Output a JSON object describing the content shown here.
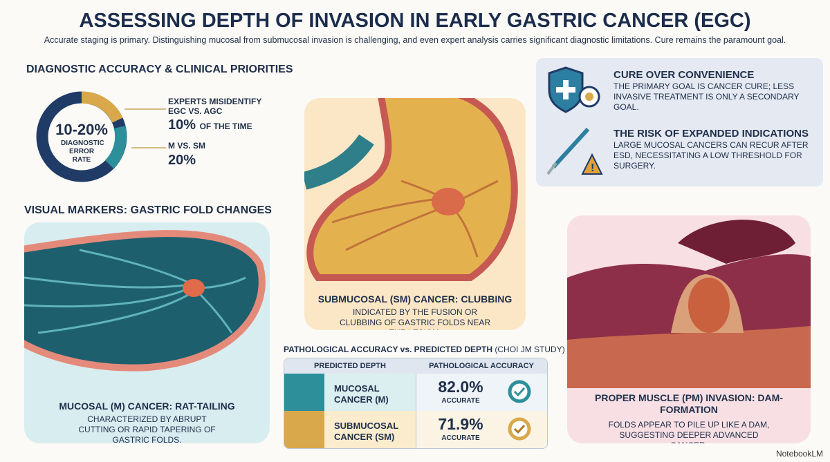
{
  "header": {
    "title": "ASSESSING DEPTH OF INVASION IN EARLY GASTRIC CANCER (EGC)",
    "subtitle": "Accurate staging is primary. Distinguishing mucosal from submucosal invasion is challenging, and even expert analysis carries significant diagnostic limitations. Cure remains the paramount goal."
  },
  "diagnostic": {
    "heading": "DIAGNOSTIC ACCURACY & CLINICAL PRIORITIES",
    "donut_value": "10-20%",
    "donut_label": "DIAGNOSTIC ERROR RATE",
    "stats": [
      {
        "label": "EXPERTS MISIDENTIFY EGC VS. AGC",
        "value": "10%",
        "suffix": "OF THE TIME"
      },
      {
        "label": "M VS. SM",
        "value": "20%"
      }
    ]
  },
  "priorities": [
    {
      "title": "CURE OVER CONVENIENCE",
      "text": "THE PRIMARY GOAL IS CANCER CURE; LESS INVASIVE TREATMENT IS ONLY A SECONDARY GOAL."
    },
    {
      "title": "THE RISK OF EXPANDED INDICATIONS",
      "text": "LARGE MUCOSAL CANCERS CAN RECUR AFTER ESD, NECESSITATING A LOW THRESHOLD FOR SURGERY."
    }
  ],
  "visual_markers": {
    "heading": "VISUAL MARKERS: GASTRIC FOLD CHANGES"
  },
  "panels": [
    {
      "title": "MUCOSAL (M) CANCER: RAT-TAILING",
      "text": "CHARACTERIZED BY ABRUPT CUTTING OR RAPID TAPERING OF GASTRIC FOLDS."
    },
    {
      "title": "SUBMUCOSAL (SM) CANCER: CLUBBING",
      "text": "INDICATED BY THE FUSION OR CLUBBING OF GASTRIC FOLDS NEAR THE LESION."
    },
    {
      "title": "PROPER MUSCLE (PM) INVASION: DAM-FORMATION",
      "text": "FOLDS APPEAR TO PILE UP LIKE A DAM, SUGGESTING DEEPER ADVANCED CANCER."
    }
  ],
  "table": {
    "title": "PATHOLOGICAL ACCURACY vs. PREDICTED DEPTH",
    "source": "(CHOI JM STUDY)",
    "columns": [
      "PREDICTED DEPTH",
      "PATHOLOGICAL ACCURACY"
    ],
    "rows": [
      [
        "MUCOSAL CANCER (M)",
        "82.0%",
        "ACCURATE"
      ],
      [
        "SUBMUCOSAL CANCER (SM)",
        "71.9%",
        "ACCURATE"
      ]
    ]
  },
  "footer": "NotebookLM"
}
